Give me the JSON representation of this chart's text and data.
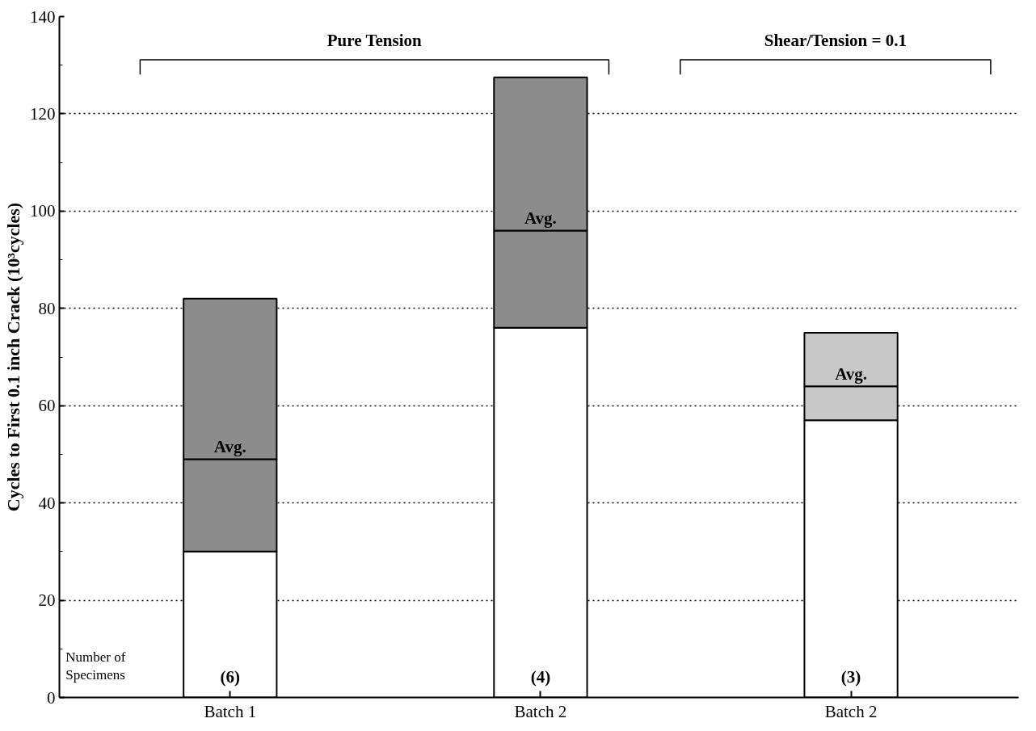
{
  "chart_data": {
    "type": "bar",
    "stacked": true,
    "ylabel": "Cycles to First 0.1 inch Crack (10³cycles)",
    "categories": [
      "Batch 1",
      "Batch 2",
      "Batch 2"
    ],
    "series": [
      {
        "color": "#ffffff",
        "values": [
          30,
          76,
          57
        ]
      },
      {
        "colors": [
          "#8c8c8c",
          "#8c8c8c",
          "#c8c8c8"
        ],
        "values": [
          19,
          20,
          7
        ]
      },
      {
        "colors": [
          "#8c8c8c",
          "#8c8c8c",
          "#c8c8c8"
        ],
        "values": [
          33,
          31.5,
          11
        ]
      }
    ],
    "ylim": [
      0,
      140
    ],
    "yticks": [
      0,
      20,
      40,
      60,
      80,
      100,
      120,
      140
    ],
    "grid": "y",
    "annotations": [
      "Pure Tension",
      "Shear/Tension = 0.1",
      "Number of Specimens",
      "Avg.",
      "Avg.",
      "Avg.",
      "(6)",
      "(4)",
      "(3)"
    ]
  }
}
